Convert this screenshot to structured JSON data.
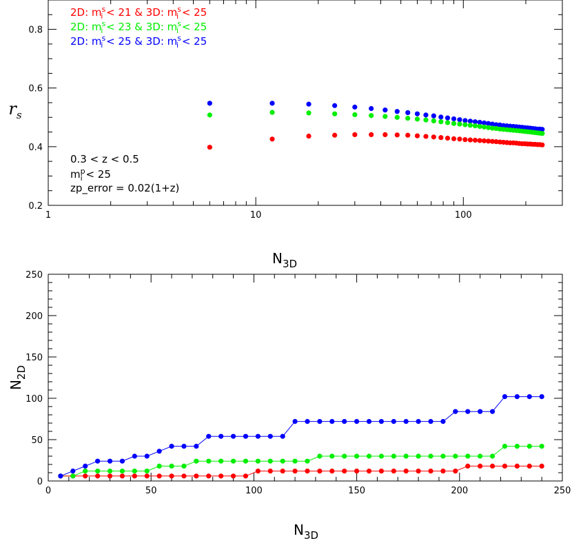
{
  "chart_data": [
    {
      "type": "scatter",
      "xscale": "log",
      "xlim": [
        1,
        300
      ],
      "ylim": [
        0.2,
        0.9
      ],
      "xticks": [
        "1",
        "10",
        "100"
      ],
      "yticks": [
        "0.2",
        "0.4",
        "0.6",
        "0.8"
      ],
      "ylabel": "r",
      "ylabel_sub": "s",
      "xlabel": "N",
      "xlabel_sub": "3D",
      "legend": [
        {
          "color": "#ff0000",
          "text": "2D: m_i^s < 21 & 3D: m_i^s < 25"
        },
        {
          "color": "#00ee00",
          "text": "2D: m_i^s < 23 & 3D: m_i^s < 25"
        },
        {
          "color": "#0000ff",
          "text": "2D: m_i^s < 25 & 3D: m_i^s < 25"
        }
      ],
      "legend_parts": [
        {
          "a": "2D: m",
          "b": " < 21 & 3D: m",
          "c": " < 25"
        },
        {
          "a": "2D: m",
          "b": " < 23 & 3D: m",
          "c": " < 25"
        },
        {
          "a": "2D: m",
          "b": " < 25 & 3D: m",
          "c": " < 25"
        }
      ],
      "annotations": [
        "0.3 < z < 0.5",
        "m_i^p < 25",
        "zp_error = 0.02(1+z)"
      ],
      "annotation_mag": {
        "a": "m",
        "b": " < 25"
      },
      "x": [
        6,
        12,
        18,
        24,
        30,
        36,
        42,
        48,
        54,
        60,
        66,
        72,
        78,
        84,
        90,
        96,
        102,
        108,
        114,
        120,
        126,
        132,
        138,
        144,
        150,
        156,
        162,
        168,
        174,
        180,
        186,
        192,
        198,
        204,
        210,
        216,
        222,
        228,
        234,
        240
      ],
      "series": [
        {
          "color": "#0000ff",
          "values": [
            0.548,
            0.548,
            0.545,
            0.54,
            0.535,
            0.53,
            0.525,
            0.52,
            0.516,
            0.512,
            0.508,
            0.505,
            0.501,
            0.498,
            0.495,
            0.492,
            0.489,
            0.487,
            0.485,
            0.483,
            0.481,
            0.479,
            0.477,
            0.475,
            0.474,
            0.472,
            0.471,
            0.47,
            0.469,
            0.468,
            0.467,
            0.466,
            0.465,
            0.464,
            0.463,
            0.462,
            0.461,
            0.46,
            0.46,
            0.459
          ]
        },
        {
          "color": "#00ee00",
          "values": [
            0.508,
            0.517,
            0.515,
            0.512,
            0.509,
            0.506,
            0.503,
            0.5,
            0.497,
            0.494,
            0.491,
            0.488,
            0.485,
            0.482,
            0.479,
            0.477,
            0.475,
            0.473,
            0.471,
            0.469,
            0.467,
            0.465,
            0.463,
            0.462,
            0.46,
            0.459,
            0.458,
            0.457,
            0.456,
            0.455,
            0.454,
            0.453,
            0.452,
            0.451,
            0.45,
            0.449,
            0.448,
            0.447,
            0.446,
            0.445
          ]
        },
        {
          "color": "#ff0000",
          "values": [
            0.398,
            0.426,
            0.436,
            0.439,
            0.441,
            0.441,
            0.441,
            0.44,
            0.439,
            0.437,
            0.435,
            0.433,
            0.431,
            0.429,
            0.427,
            0.426,
            0.424,
            0.423,
            0.422,
            0.421,
            0.42,
            0.419,
            0.418,
            0.417,
            0.416,
            0.415,
            0.414,
            0.413,
            0.413,
            0.412,
            0.411,
            0.41,
            0.41,
            0.409,
            0.409,
            0.408,
            0.408,
            0.407,
            0.407,
            0.406
          ]
        }
      ]
    },
    {
      "type": "line",
      "xlim": [
        0,
        250
      ],
      "ylim": [
        0,
        250
      ],
      "xticks": [
        "0",
        "50",
        "100",
        "150",
        "200",
        "250"
      ],
      "yticks": [
        "0",
        "50",
        "100",
        "150",
        "200",
        "250"
      ],
      "xlabel": "N",
      "xlabel_sub": "3D",
      "ylabel": "N",
      "ylabel_sub": "2D",
      "x": [
        6,
        12,
        18,
        24,
        30,
        36,
        42,
        48,
        54,
        60,
        66,
        72,
        78,
        84,
        90,
        96,
        102,
        108,
        114,
        120,
        126,
        132,
        138,
        144,
        150,
        156,
        162,
        168,
        174,
        180,
        186,
        192,
        198,
        204,
        210,
        216,
        222,
        228,
        234,
        240
      ],
      "series": [
        {
          "color": "#0000ff",
          "values": [
            6,
            12,
            18,
            24,
            24,
            24,
            30,
            30,
            36,
            42,
            42,
            42,
            54,
            54,
            54,
            54,
            54,
            54,
            54,
            72,
            72,
            72,
            72,
            72,
            72,
            72,
            72,
            72,
            72,
            72,
            72,
            72,
            84,
            84,
            84,
            84,
            102,
            102,
            102,
            102
          ]
        },
        {
          "color": "#00ee00",
          "values": [
            6,
            6,
            12,
            12,
            12,
            12,
            12,
            12,
            18,
            18,
            18,
            24,
            24,
            24,
            24,
            24,
            24,
            24,
            24,
            24,
            24,
            30,
            30,
            30,
            30,
            30,
            30,
            30,
            30,
            30,
            30,
            30,
            30,
            30,
            30,
            30,
            42,
            42,
            42,
            42
          ]
        },
        {
          "color": "#ff0000",
          "values": [
            6,
            6,
            6,
            6,
            6,
            6,
            6,
            6,
            6,
            6,
            6,
            6,
            6,
            6,
            6,
            6,
            12,
            12,
            12,
            12,
            12,
            12,
            12,
            12,
            12,
            12,
            12,
            12,
            12,
            12,
            12,
            12,
            12,
            18,
            18,
            18,
            18,
            18,
            18,
            18
          ]
        }
      ]
    }
  ]
}
